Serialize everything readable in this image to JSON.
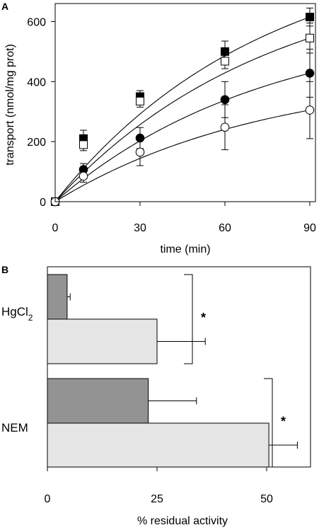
{
  "chart_data": [
    {
      "panel": "A",
      "type": "scatter",
      "xlabel": "time (min)",
      "ylabel": "transport (nmol/mg prot)",
      "xlim": [
        0,
        92
      ],
      "ylim": [
        0,
        660
      ],
      "xticks": [
        "0",
        "30",
        "60",
        "90"
      ],
      "yticks": [
        "0",
        "200",
        "400",
        "600"
      ],
      "series": [
        {
          "marker": "filled-square",
          "x": [
            0,
            10,
            30,
            60,
            90
          ],
          "y": [
            0,
            210,
            350,
            500,
            615
          ],
          "err": [
            0,
            28,
            20,
            35,
            30
          ],
          "fit": [
            0,
            600
          ]
        },
        {
          "marker": "open-square",
          "x": [
            0,
            10,
            30,
            60,
            90
          ],
          "y": [
            0,
            190,
            335,
            468,
            545
          ],
          "err": [
            0,
            20,
            20,
            25,
            50
          ],
          "fit": [
            0,
            540
          ]
        },
        {
          "marker": "filled-circle",
          "x": [
            0,
            10,
            30,
            60,
            90
          ],
          "y": [
            0,
            107,
            212,
            340,
            428
          ],
          "err": [
            0,
            20,
            35,
            60,
            80
          ],
          "fit": [
            0,
            420
          ]
        },
        {
          "marker": "open-circle",
          "x": [
            0,
            10,
            30,
            60,
            90
          ],
          "y": [
            0,
            85,
            165,
            248,
            305
          ],
          "err": [
            0,
            20,
            45,
            75,
            95
          ],
          "fit": [
            0,
            300
          ]
        }
      ],
      "grid": false
    },
    {
      "panel": "B",
      "type": "bar",
      "orientation": "horizontal",
      "xlabel": "% residual activity",
      "xlim": [
        0,
        60
      ],
      "xticks": [
        "0",
        "25",
        "50"
      ],
      "groups": [
        {
          "label": "HgCl",
          "label_sub": "2",
          "bars": [
            {
              "shade": "dark",
              "value": 4.5,
              "err": 0.7
            },
            {
              "shade": "light",
              "value": 25,
              "err": 11
            }
          ]
        },
        {
          "label": "NEM",
          "bars": [
            {
              "shade": "dark",
              "value": 23,
              "err": 11
            },
            {
              "shade": "light",
              "value": 50.5,
              "err": 6.5
            }
          ]
        }
      ],
      "significance": [
        "*",
        "*"
      ],
      "colors": {
        "dark": "#939393",
        "light": "#e6e6e6"
      },
      "grid": false
    }
  ]
}
